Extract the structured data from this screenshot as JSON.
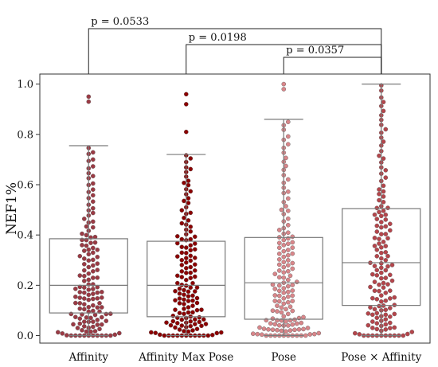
{
  "chart_data": {
    "type": "box_swarm",
    "ylabel": "NEF1%",
    "ylim": [
      -0.03,
      1.04
    ],
    "yticks": [
      0.0,
      0.2,
      0.4,
      0.6,
      0.8,
      1.0
    ],
    "ytick_labels": [
      "0.0",
      "0.2",
      "0.4",
      "0.6",
      "0.8",
      "1.0"
    ],
    "categories": [
      "Affinity",
      "Affinity Max Pose",
      "Pose",
      "Pose × Affinity"
    ],
    "grid": false,
    "boxes": [
      {
        "category": "Affinity",
        "whisker_low": 0.0,
        "q1": 0.09,
        "median": 0.2,
        "q3": 0.385,
        "whisker_high": 0.755,
        "outliers": [
          0.93,
          0.95
        ],
        "color": "#9b3a44"
      },
      {
        "category": "Affinity Max Pose",
        "whisker_low": 0.0,
        "q1": 0.075,
        "median": 0.2,
        "q3": 0.375,
        "whisker_high": 0.72,
        "outliers": [
          0.92,
          0.96,
          0.81
        ],
        "color": "#8b0000"
      },
      {
        "category": "Pose",
        "whisker_low": 0.0,
        "q1": 0.065,
        "median": 0.21,
        "q3": 0.39,
        "whisker_high": 0.86,
        "outliers": [
          0.98,
          1.0
        ],
        "color": "#d9868a"
      },
      {
        "category": "Pose × Affinity",
        "whisker_low": 0.0,
        "q1": 0.12,
        "median": 0.29,
        "q3": 0.505,
        "whisker_high": 1.0,
        "outliers": [],
        "color": "#b5454b"
      }
    ],
    "comparisons": [
      {
        "groups": [
          "Affinity",
          "Pose × Affinity"
        ],
        "label": "p = 0.0533"
      },
      {
        "groups": [
          "Affinity Max Pose",
          "Pose × Affinity"
        ],
        "label": "p = 0.0198"
      },
      {
        "groups": [
          "Pose",
          "Pose × Affinity"
        ],
        "label": "p = 0.0357"
      }
    ]
  }
}
